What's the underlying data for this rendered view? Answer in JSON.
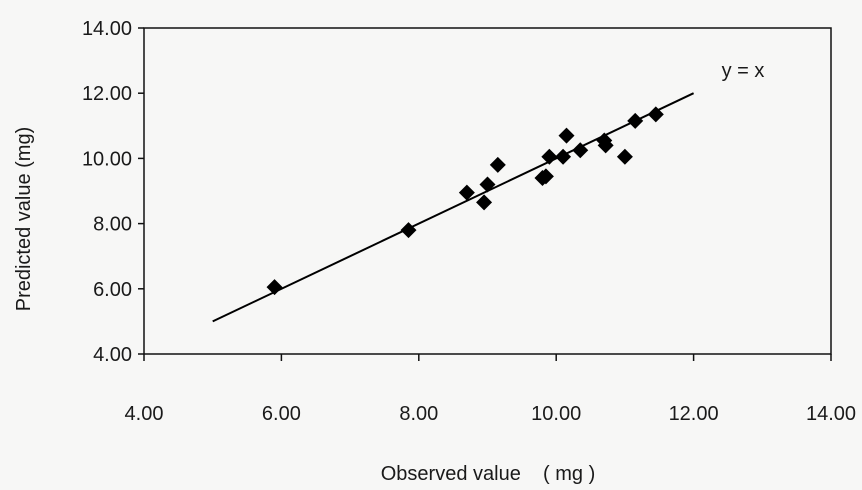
{
  "chart_data": {
    "type": "scatter",
    "xlabel": "Observed value    ( mg )",
    "ylabel": "Predicted value (mg)",
    "xlim": [
      4,
      14
    ],
    "ylim": [
      4,
      14
    ],
    "x_ticks": [
      "4.00",
      "6.00",
      "8.00",
      "10.00",
      "12.00",
      "14.00"
    ],
    "y_ticks": [
      "4.00",
      "6.00",
      "8.00",
      "10.00",
      "12.00",
      "14.00"
    ],
    "grid": false,
    "marker": "diamond",
    "marker_color": "#000000",
    "points": [
      {
        "x": 5.9,
        "y": 6.05
      },
      {
        "x": 7.85,
        "y": 7.8
      },
      {
        "x": 8.7,
        "y": 8.95
      },
      {
        "x": 8.95,
        "y": 8.65
      },
      {
        "x": 9.0,
        "y": 9.2
      },
      {
        "x": 9.15,
        "y": 9.8
      },
      {
        "x": 9.8,
        "y": 9.4
      },
      {
        "x": 9.85,
        "y": 9.45
      },
      {
        "x": 9.9,
        "y": 10.05
      },
      {
        "x": 10.1,
        "y": 10.05
      },
      {
        "x": 10.15,
        "y": 10.7
      },
      {
        "x": 10.35,
        "y": 10.25
      },
      {
        "x": 10.7,
        "y": 10.55
      },
      {
        "x": 10.72,
        "y": 10.4
      },
      {
        "x": 11.0,
        "y": 10.05
      },
      {
        "x": 11.15,
        "y": 11.15
      },
      {
        "x": 11.45,
        "y": 11.35
      }
    ],
    "reference_line": {
      "label": "y = x",
      "x": [
        5,
        12
      ],
      "y": [
        5,
        12
      ]
    }
  }
}
